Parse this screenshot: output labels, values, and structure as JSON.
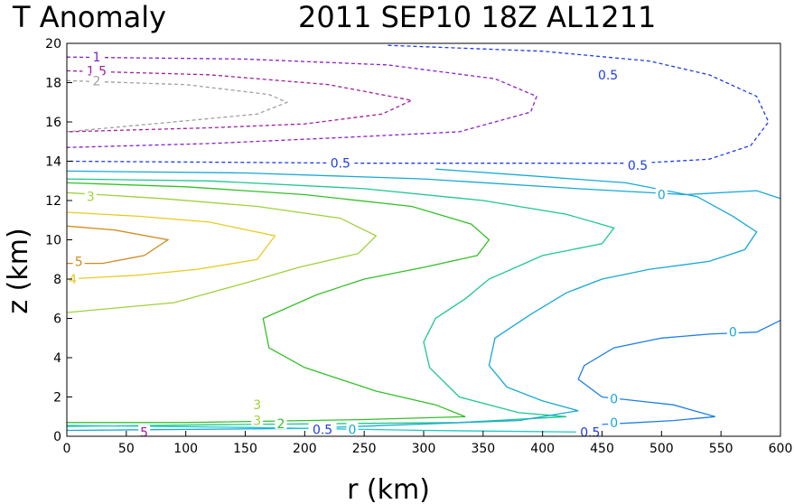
{
  "chart_data": {
    "type": "contour",
    "title_left": "T Anomaly",
    "title_right": "2011 SEP10 18Z  AL1211",
    "xlabel": "r (km)",
    "ylabel": "z (km)",
    "xlim": [
      0,
      600
    ],
    "ylim": [
      0,
      20
    ],
    "xticks": [
      0,
      50,
      100,
      150,
      200,
      250,
      300,
      350,
      400,
      450,
      500,
      550,
      600
    ],
    "yticks": [
      0,
      2,
      4,
      6,
      8,
      10,
      12,
      14,
      16,
      18,
      20
    ],
    "grid": false,
    "contours": [
      {
        "level": "5",
        "color": "#d08a1e",
        "dash": false,
        "labels": [
          {
            "text": "5",
            "x": 10,
            "y": 8.9
          }
        ],
        "points": [
          [
            0,
            10.7
          ],
          [
            40,
            10.5
          ],
          [
            85,
            10
          ],
          [
            65,
            9.2
          ],
          [
            30,
            8.8
          ],
          [
            0,
            8.8
          ]
        ]
      },
      {
        "level": "4",
        "color": "#e6cc1e",
        "dash": false,
        "labels": [
          {
            "text": "4",
            "x": 5,
            "y": 8.0
          }
        ],
        "points": [
          [
            0,
            11.4
          ],
          [
            60,
            11.2
          ],
          [
            120,
            10.9
          ],
          [
            175,
            10.2
          ],
          [
            160,
            9.0
          ],
          [
            110,
            8.5
          ],
          [
            60,
            8.2
          ],
          [
            0,
            8.0
          ]
        ]
      },
      {
        "level": "3",
        "color": "#9ed23a",
        "dash": false,
        "labels": [
          {
            "text": "3",
            "x": 20,
            "y": 12.2
          }
        ],
        "points": [
          [
            0,
            12.4
          ],
          [
            80,
            12.1
          ],
          [
            160,
            11.7
          ],
          [
            230,
            11.1
          ],
          [
            260,
            10.2
          ],
          [
            245,
            9.3
          ],
          [
            195,
            8.6
          ],
          [
            150,
            7.8
          ],
          [
            90,
            6.8
          ],
          [
            0,
            6.3
          ]
        ]
      },
      {
        "level": "2",
        "color": "#34c028",
        "dash": false,
        "labels": [],
        "points": [
          [
            0,
            12.9
          ],
          [
            100,
            12.7
          ],
          [
            200,
            12.3
          ],
          [
            290,
            11.7
          ],
          [
            340,
            10.8
          ],
          [
            355,
            10
          ],
          [
            345,
            9.2
          ],
          [
            300,
            8.6
          ],
          [
            250,
            8
          ],
          [
            210,
            7.2
          ],
          [
            165,
            6
          ],
          [
            170,
            4.5
          ],
          [
            200,
            3.5
          ],
          [
            260,
            2.3
          ],
          [
            310,
            1.6
          ],
          [
            335,
            1.0
          ],
          [
            250,
            0.85
          ],
          [
            100,
            0.7
          ],
          [
            0,
            0.7
          ]
        ]
      },
      {
        "level": "1",
        "color": "#1ec88c",
        "dash": false,
        "labels": [],
        "points": [
          [
            0,
            13.1
          ],
          [
            120,
            13
          ],
          [
            250,
            12.6
          ],
          [
            350,
            12
          ],
          [
            420,
            11.3
          ],
          [
            460,
            10.6
          ],
          [
            450,
            9.8
          ],
          [
            400,
            9.2
          ],
          [
            355,
            8
          ],
          [
            335,
            7
          ],
          [
            310,
            6
          ],
          [
            300,
            4.8
          ],
          [
            305,
            3.5
          ],
          [
            330,
            2
          ],
          [
            380,
            1.2
          ],
          [
            420,
            1.0
          ],
          [
            330,
            0.7
          ],
          [
            150,
            0.6
          ],
          [
            0,
            0.5
          ]
        ]
      },
      {
        "level": "0",
        "color": "#18a8d8",
        "dash": false,
        "labels": [
          {
            "text": "0",
            "x": 500,
            "y": 12.3
          },
          {
            "text": "0",
            "x": 560,
            "y": 5.3
          },
          {
            "text": "0",
            "x": 460,
            "y": 1.9
          },
          {
            "text": "0",
            "x": 460,
            "y": 0.7
          },
          {
            "text": "0",
            "x": 240,
            "y": 0.35
          }
        ],
        "points": [
          [
            0,
            13.5
          ],
          [
            150,
            13.4
          ],
          [
            300,
            13.1
          ],
          [
            430,
            12.6
          ],
          [
            520,
            12.3
          ],
          [
            580,
            12.5
          ],
          [
            600,
            12.1
          ]
        ]
      },
      {
        "level": "0b",
        "color": "#18a8d8",
        "dash": false,
        "labels": [],
        "points": [
          [
            310,
            13.6
          ],
          [
            380,
            13.3
          ],
          [
            470,
            12.9
          ],
          [
            530,
            12.2
          ],
          [
            560,
            11.2
          ],
          [
            580,
            10.4
          ],
          [
            570,
            9.5
          ],
          [
            540,
            8.9
          ],
          [
            490,
            8.5
          ],
          [
            450,
            8.0
          ],
          [
            420,
            7.3
          ],
          [
            390,
            6.2
          ],
          [
            360,
            5
          ],
          [
            355,
            3.6
          ],
          [
            370,
            2.5
          ],
          [
            400,
            1.8
          ],
          [
            430,
            1.3
          ],
          [
            380,
            0.8
          ],
          [
            200,
            0.4
          ],
          [
            0,
            0.3
          ]
        ]
      },
      {
        "level": "0c",
        "color": "#1e80e6",
        "dash": false,
        "labels": [],
        "points": [
          [
            600,
            5.9
          ],
          [
            580,
            5.3
          ],
          [
            540,
            5.2
          ],
          [
            500,
            5.0
          ],
          [
            460,
            4.5
          ],
          [
            435,
            3.6
          ],
          [
            430,
            2.9
          ],
          [
            450,
            2.0
          ],
          [
            480,
            1.8
          ],
          [
            510,
            1.6
          ],
          [
            545,
            1.0
          ],
          [
            510,
            0.8
          ],
          [
            480,
            0.7
          ],
          [
            450,
            0.6
          ]
        ]
      },
      {
        "level": "-0.5",
        "color": "#1e3ce6",
        "dash": true,
        "labels": [
          {
            "text": "0.5",
            "x": 230,
            "y": 13.9
          },
          {
            "text": "0.5",
            "x": 480,
            "y": 13.8
          },
          {
            "text": "0.5",
            "x": 455,
            "y": 18.4
          },
          {
            "text": "0.5",
            "x": 215,
            "y": 0.35
          },
          {
            "text": "0.5",
            "x": 440,
            "y": 0.2
          }
        ],
        "points": [
          [
            270,
            19.9
          ],
          [
            400,
            19.6
          ],
          [
            490,
            19.1
          ],
          [
            540,
            18.4
          ],
          [
            580,
            17.3
          ],
          [
            590,
            16
          ],
          [
            575,
            14.8
          ],
          [
            540,
            14.1
          ],
          [
            480,
            13.9
          ],
          [
            380,
            13.9
          ],
          [
            250,
            13.9
          ],
          [
            0,
            14.0
          ]
        ]
      },
      {
        "level": "-1",
        "color": "#8c1ec8",
        "dash": true,
        "labels": [
          {
            "text": "1",
            "x": 25,
            "y": 19.3
          }
        ],
        "points": [
          [
            0,
            19.3
          ],
          [
            150,
            19.2
          ],
          [
            270,
            18.9
          ],
          [
            360,
            18.2
          ],
          [
            395,
            17.3
          ],
          [
            390,
            16.5
          ],
          [
            330,
            15.5
          ],
          [
            230,
            15.2
          ],
          [
            120,
            14.9
          ],
          [
            0,
            14.7
          ]
        ]
      },
      {
        "level": "-1.5",
        "color": "#a01ea0",
        "dash": true,
        "labels": [
          {
            "text": "1.5",
            "x": 25,
            "y": 18.6
          }
        ],
        "points": [
          [
            0,
            18.6
          ],
          [
            120,
            18.4
          ],
          [
            220,
            17.9
          ],
          [
            290,
            17.1
          ],
          [
            265,
            16.4
          ],
          [
            200,
            15.9
          ],
          [
            120,
            15.7
          ],
          [
            0,
            15.5
          ]
        ]
      },
      {
        "level": "-2",
        "color": "#a0a0a0",
        "dash": true,
        "labels": [
          {
            "text": "2",
            "x": 25,
            "y": 18.1
          }
        ],
        "points": [
          [
            0,
            18.1
          ],
          [
            100,
            17.9
          ],
          [
            170,
            17.4
          ],
          [
            185,
            17
          ],
          [
            160,
            16.4
          ],
          [
            90,
            16.0
          ],
          [
            0,
            15.5
          ]
        ]
      },
      {
        "level": "near-surface",
        "color": "#1ec8c8",
        "dash": false,
        "labels": [],
        "points": [
          [
            0,
            0.55
          ],
          [
            150,
            0.45
          ],
          [
            300,
            0.3
          ],
          [
            450,
            0.2
          ]
        ]
      }
    ],
    "extra_labels": [
      {
        "text": "3",
        "x": 160,
        "y": 1.6,
        "color": "#9ed23a"
      },
      {
        "text": "3",
        "x": 160,
        "y": 0.8,
        "color": "#9ed23a"
      },
      {
        "text": "2",
        "x": 180,
        "y": 0.65,
        "color": "#34c028"
      },
      {
        "text": "5",
        "x": 65,
        "y": 0.2,
        "color": "#a01ea0"
      }
    ]
  }
}
